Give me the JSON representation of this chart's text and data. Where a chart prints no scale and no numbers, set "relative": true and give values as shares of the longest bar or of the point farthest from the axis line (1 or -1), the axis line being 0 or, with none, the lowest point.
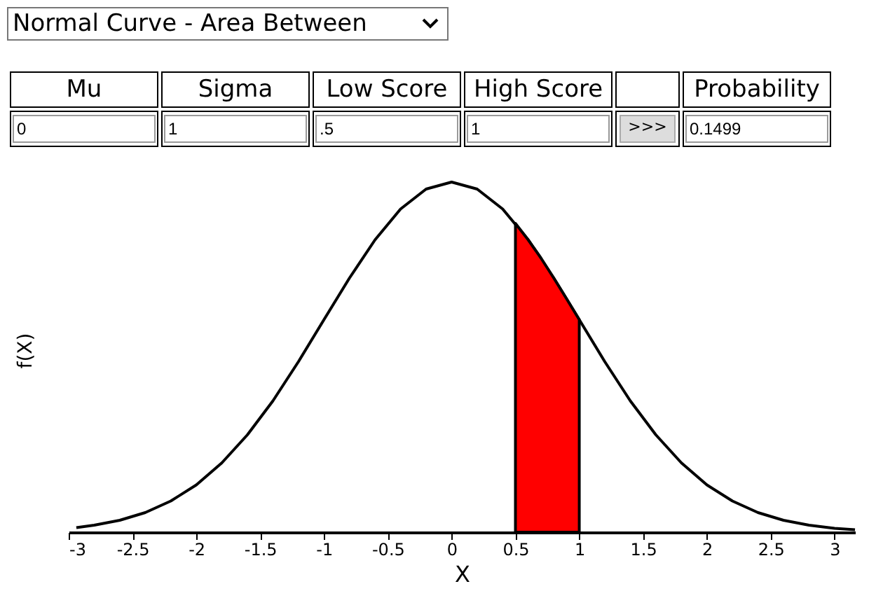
{
  "chart_data": {
    "type": "line",
    "title": "Normal Curve - Area Between",
    "xlabel": "X",
    "ylabel": "f(X)",
    "annotations": [
      "Mu",
      "Sigma",
      "Low Score",
      "High Score",
      "Probability",
      "0",
      "1",
      ".5",
      "1",
      ">>>",
      "0.1499"
    ],
    "relative": true,
    "xlim": [
      -3,
      3.16
    ],
    "xticks": [
      -3,
      -2.5,
      -2,
      -1.5,
      -1,
      -0.5,
      0,
      0.5,
      1,
      1.5,
      2,
      2.5,
      3
    ],
    "grid": false,
    "marker": "none",
    "series": [
      {
        "color": "#000000",
        "x": [
          -2.94,
          -2.8,
          -2.6,
          -2.4,
          -2.2,
          -2.0,
          -1.8,
          -1.6,
          -1.4,
          -1.2,
          -1.0,
          -0.8,
          -0.6,
          -0.4,
          -0.2,
          0,
          0.2,
          0.4,
          0.6,
          0.8,
          1.0,
          1.2,
          1.4,
          1.6,
          1.8,
          2.0,
          2.2,
          2.4,
          2.6,
          2.8,
          3.0,
          3.16
        ],
        "values": [
          0.013,
          0.02,
          0.034,
          0.056,
          0.089,
          0.135,
          0.198,
          0.278,
          0.375,
          0.487,
          0.607,
          0.726,
          0.835,
          0.923,
          0.98,
          1,
          0.98,
          0.923,
          0.835,
          0.726,
          0.607,
          0.487,
          0.375,
          0.278,
          0.198,
          0.135,
          0.089,
          0.056,
          0.034,
          0.02,
          0.011,
          0.007
        ]
      },
      {
        "type": "area",
        "color": "#ff0000",
        "x": [
          0.5,
          0.6,
          0.7,
          0.8,
          0.9,
          1.0
        ],
        "values": [
          0.882,
          0.835,
          0.783,
          0.726,
          0.667,
          0.607
        ]
      }
    ]
  }
}
